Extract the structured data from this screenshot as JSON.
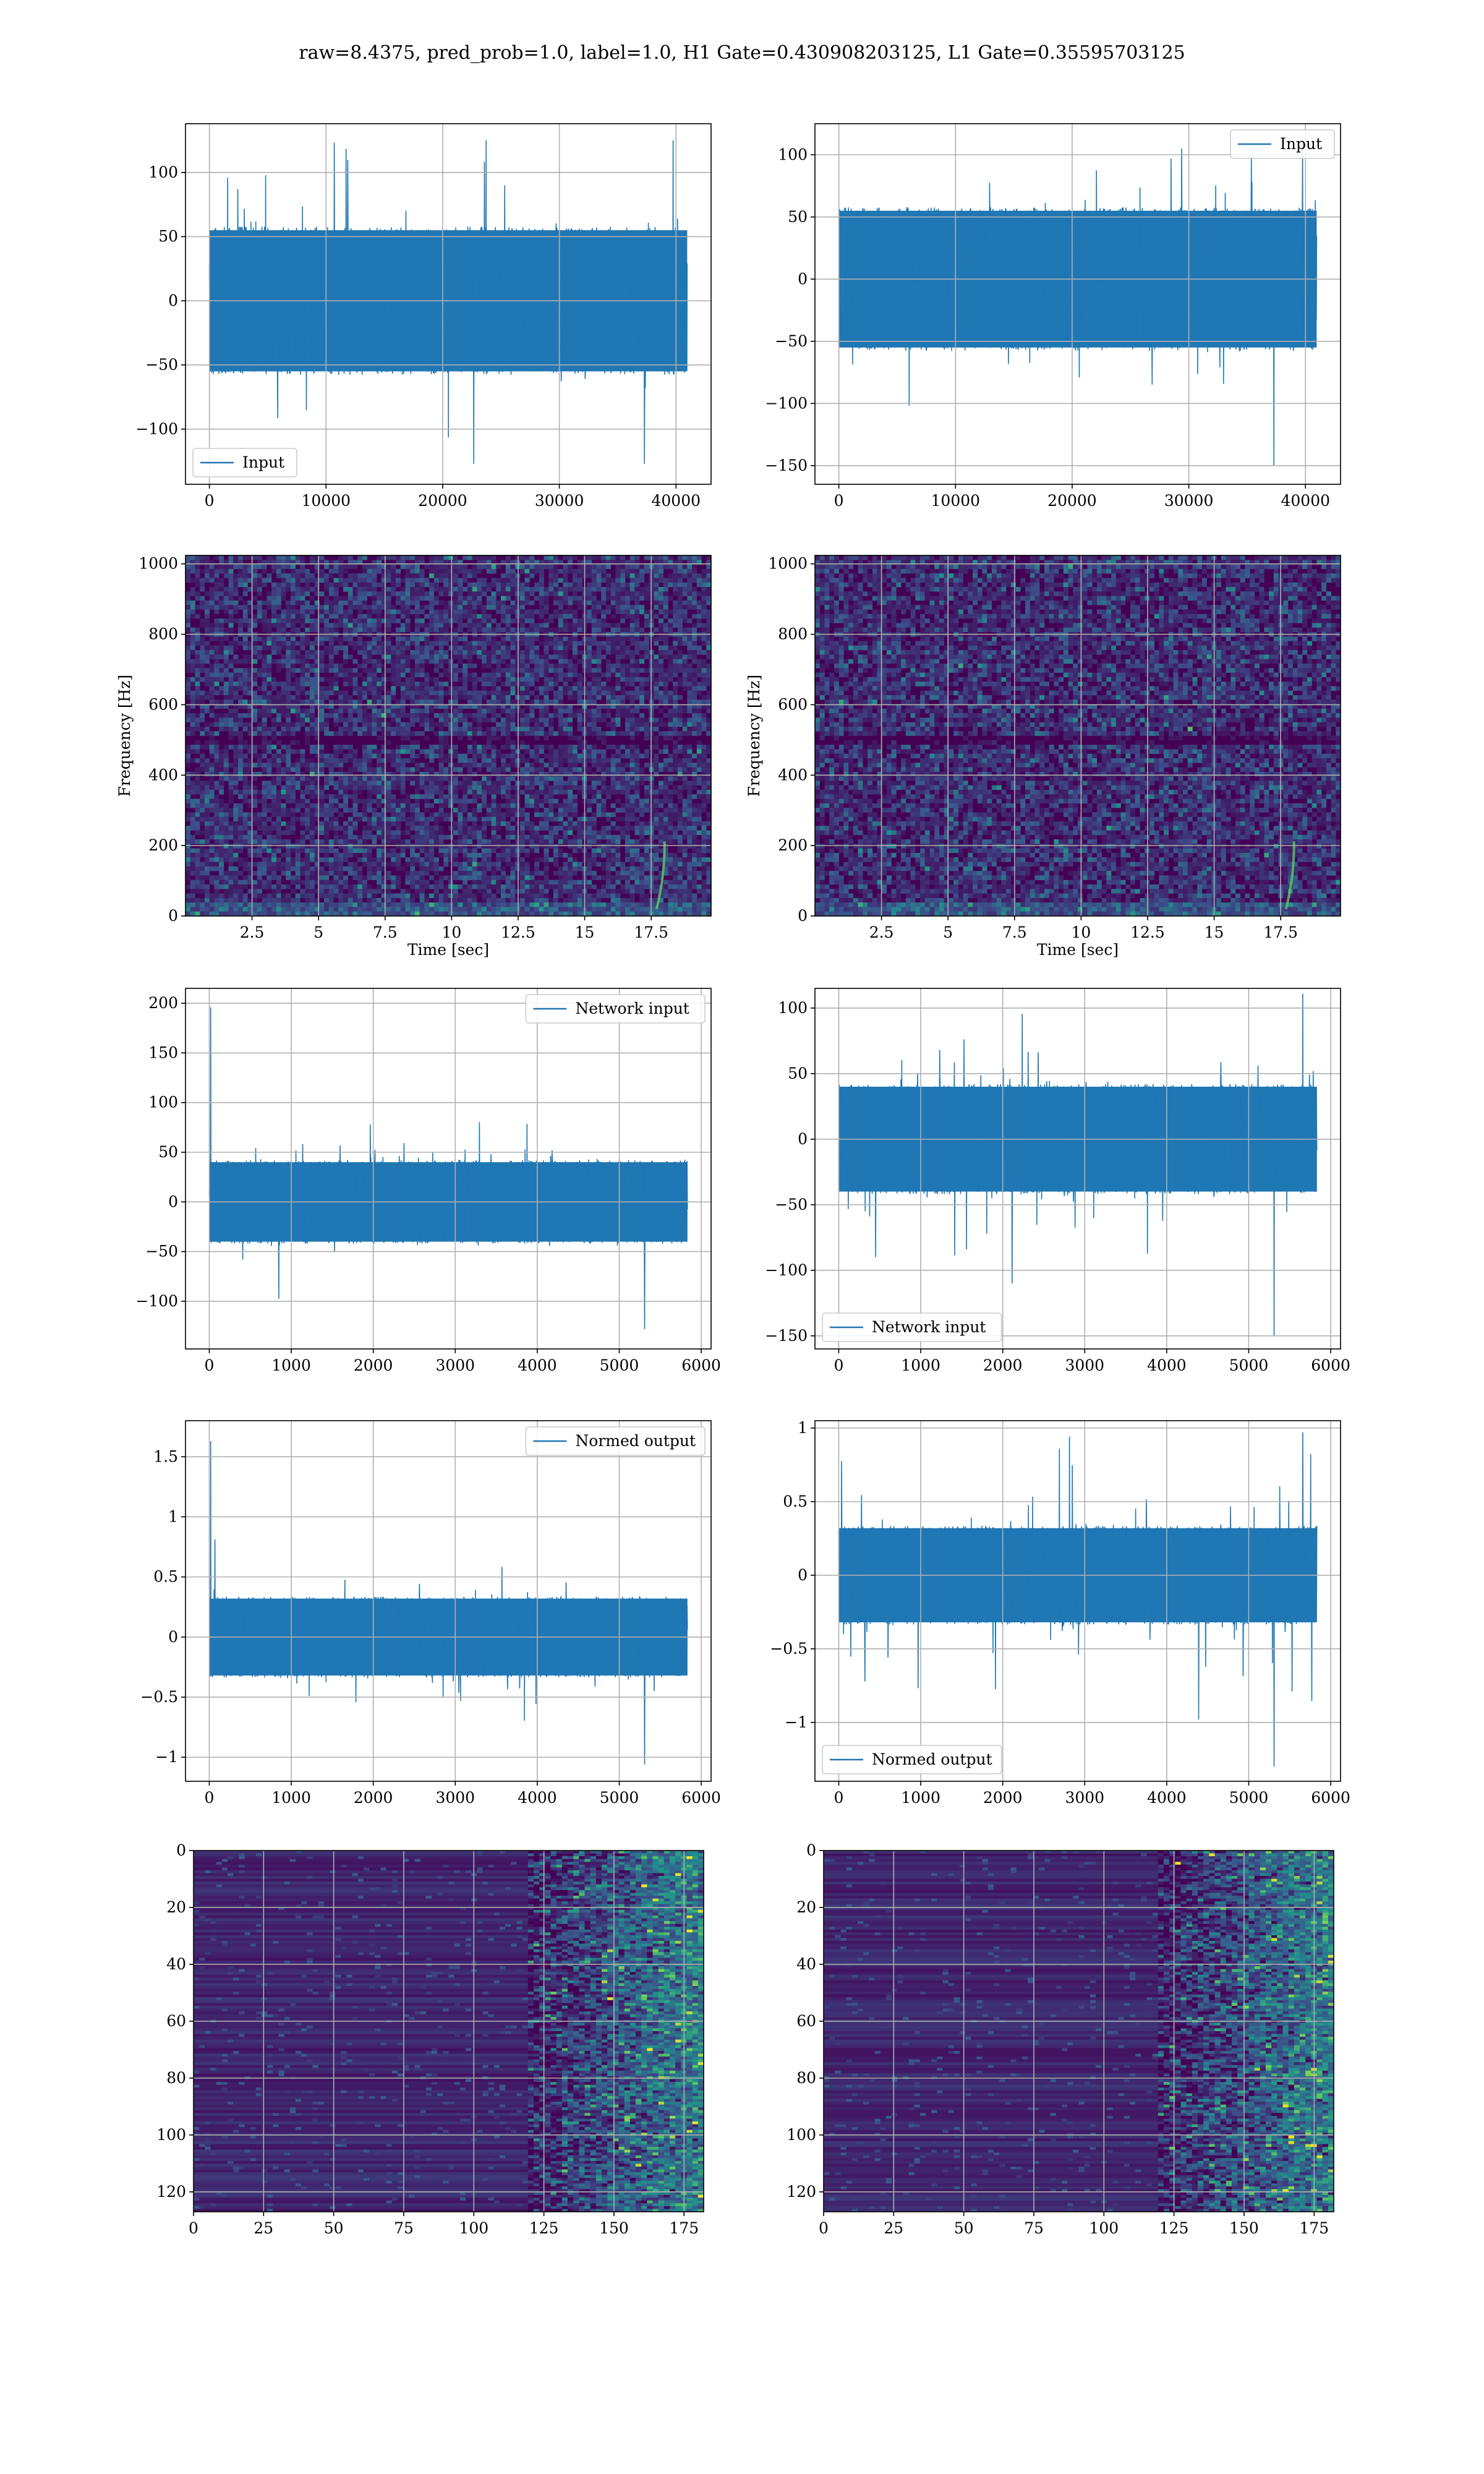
{
  "title": "raw=8.4375, pred_prob=1.0, label=1.0, H1 Gate=0.430908203125, L1 Gate=0.35595703125",
  "colors": {
    "line": "#1f77b4",
    "grid": "#b0b0b0",
    "viridis_low": "#440154",
    "viridis_mid": "#21918c",
    "viridis_high": "#fde725"
  },
  "chart_data": [
    {
      "id": "h1-input",
      "type": "line",
      "xlim": [
        -2048,
        43008
      ],
      "ylim": [
        -143,
        138
      ],
      "xticks": [
        0,
        10000,
        20000,
        30000,
        40000
      ],
      "yticks": [
        -100,
        -50,
        0,
        50,
        100
      ],
      "legend": "lower-left",
      "series": [
        {
          "name": "Input",
          "n_samples": 40960,
          "mean": 0,
          "std": 20,
          "core_min": -55,
          "core_max": 55,
          "max": 125,
          "min": -127
        }
      ],
      "grid": true
    },
    {
      "id": "l1-input",
      "type": "line",
      "xlim": [
        -2048,
        43008
      ],
      "ylim": [
        -165,
        125
      ],
      "xticks": [
        0,
        10000,
        20000,
        30000,
        40000
      ],
      "yticks": [
        -150,
        -100,
        -50,
        0,
        50,
        100
      ],
      "legend": "upper-right",
      "series": [
        {
          "name": "Input",
          "n_samples": 40960,
          "mean": 0,
          "std": 20,
          "core_min": -55,
          "core_max": 55,
          "max": 105,
          "min": -150
        }
      ],
      "grid": true
    },
    {
      "id": "h1-spectrogram",
      "type": "heatmap",
      "xlim": [
        0,
        19.75
      ],
      "ylim": [
        0,
        1024
      ],
      "xticks": [
        2.5,
        5.0,
        7.5,
        10.0,
        12.5,
        15.0,
        17.5
      ],
      "yticks": [
        0,
        200,
        400,
        600,
        800,
        1000
      ],
      "xlabel": "Time [sec]",
      "ylabel": "Frequency [Hz]",
      "chirp_time": 18.0,
      "dark_band_hz": 500,
      "grid": true
    },
    {
      "id": "l1-spectrogram",
      "type": "heatmap",
      "xlim": [
        0,
        19.75
      ],
      "ylim": [
        0,
        1024
      ],
      "xticks": [
        2.5,
        5.0,
        7.5,
        10.0,
        12.5,
        15.0,
        17.5
      ],
      "yticks": [
        0,
        200,
        400,
        600,
        800,
        1000
      ],
      "xlabel": "Time [sec]",
      "ylabel": "Frequency [Hz]",
      "chirp_time": 18.0,
      "dark_band_hz": 500,
      "grid": true
    },
    {
      "id": "h1-network-input",
      "type": "line",
      "xlim": [
        -290,
        6120
      ],
      "ylim": [
        -148,
        215
      ],
      "xticks": [
        0,
        1000,
        2000,
        3000,
        4000,
        5000,
        6000
      ],
      "yticks": [
        -100,
        -50,
        0,
        50,
        100,
        150,
        200
      ],
      "legend": "upper-right",
      "series": [
        {
          "name": "Network input",
          "n_samples": 5832,
          "mean": 0,
          "std": 17,
          "core_min": -40,
          "core_max": 40,
          "max": 196,
          "min": -128
        }
      ],
      "grid": true
    },
    {
      "id": "l1-network-input",
      "type": "line",
      "xlim": [
        -290,
        6120
      ],
      "ylim": [
        -160,
        115
      ],
      "xticks": [
        0,
        1000,
        2000,
        3000,
        4000,
        5000,
        6000
      ],
      "yticks": [
        -150,
        -100,
        -50,
        0,
        50,
        100
      ],
      "legend": "lower-left",
      "series": [
        {
          "name": "Network input",
          "n_samples": 5832,
          "mean": 0,
          "std": 17,
          "core_min": -40,
          "core_max": 40,
          "max": 111,
          "min": -150
        }
      ],
      "grid": true
    },
    {
      "id": "h1-normed-output",
      "type": "line",
      "xlim": [
        -290,
        6120
      ],
      "ylim": [
        -1.2,
        1.8
      ],
      "xticks": [
        0,
        1000,
        2000,
        3000,
        4000,
        5000,
        6000
      ],
      "yticks": [
        -1.0,
        -0.5,
        0.0,
        0.5,
        1.0,
        1.5
      ],
      "legend": "upper-right",
      "series": [
        {
          "name": "Normed output",
          "n_samples": 5832,
          "mean": 0,
          "std": 0.14,
          "core_min": -0.32,
          "core_max": 0.32,
          "max": 1.63,
          "min": -1.06
        }
      ],
      "grid": true
    },
    {
      "id": "l1-normed-output",
      "type": "line",
      "xlim": [
        -290,
        6120
      ],
      "ylim": [
        -1.4,
        1.05
      ],
      "xticks": [
        0,
        1000,
        2000,
        3000,
        4000,
        5000,
        6000
      ],
      "yticks": [
        -1.0,
        -0.5,
        0.0,
        0.5,
        1.0
      ],
      "legend": "lower-left",
      "series": [
        {
          "name": "Normed output",
          "n_samples": 5832,
          "mean": 0,
          "std": 0.14,
          "core_min": -0.32,
          "core_max": 0.32,
          "max": 0.97,
          "min": -1.3
        }
      ],
      "grid": true
    },
    {
      "id": "h1-feature-map",
      "type": "heatmap",
      "xlim": [
        0,
        182
      ],
      "ylim": [
        127,
        0
      ],
      "xticks": [
        0,
        25,
        50,
        75,
        100,
        125,
        150,
        175
      ],
      "yticks": [
        0,
        20,
        40,
        60,
        80,
        100,
        120
      ],
      "active_columns": [
        125,
        182
      ],
      "grid": true
    },
    {
      "id": "l1-feature-map",
      "type": "heatmap",
      "xlim": [
        0,
        182
      ],
      "ylim": [
        127,
        0
      ],
      "xticks": [
        0,
        25,
        50,
        75,
        100,
        125,
        150,
        175
      ],
      "yticks": [
        0,
        20,
        40,
        60,
        80,
        100,
        120
      ],
      "active_columns": [
        125,
        182
      ],
      "grid": true
    }
  ]
}
